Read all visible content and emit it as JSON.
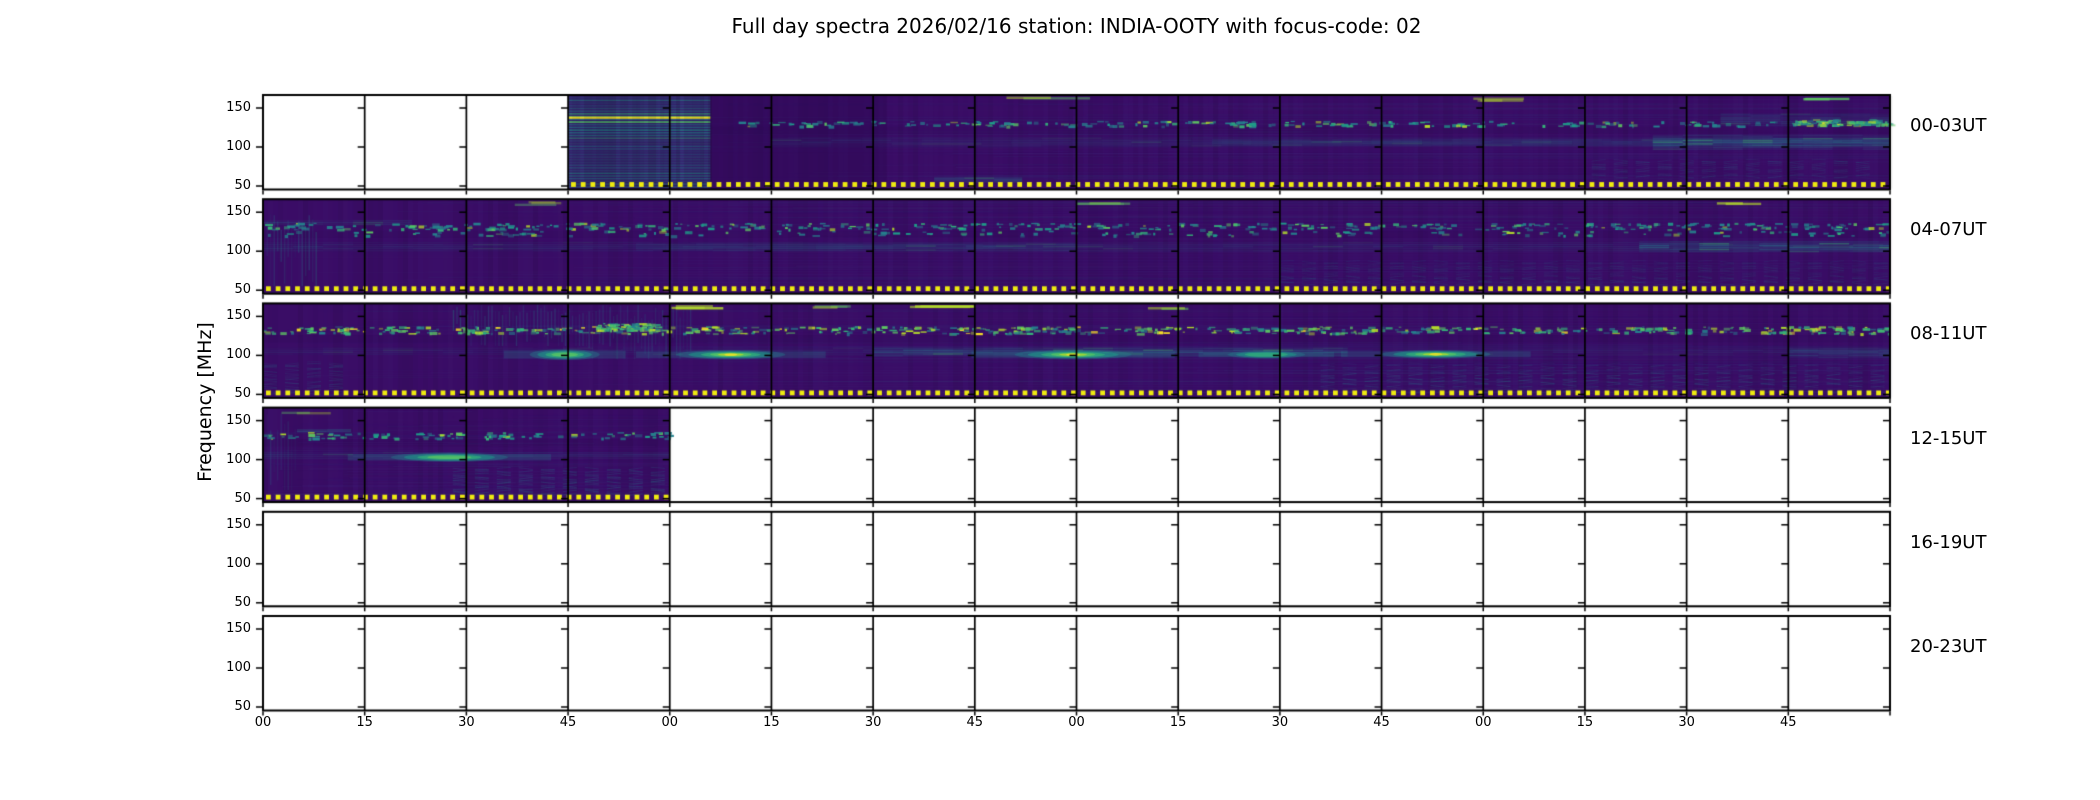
{
  "title": "Full day spectra 2026/02/16 station: INDIA-OOTY with focus-code: 02",
  "chart_data": {
    "type": "heatmap",
    "title": "Full day spectra 2026/02/16 station: INDIA-OOTY with focus-code: 02",
    "station": "INDIA-OOTY",
    "date": "2026/02/16",
    "focus_code": "02",
    "ylabel": "Frequency [MHz]",
    "y_ticks_mhz": [
      150,
      100,
      50
    ],
    "y_tick_labels": [
      "150",
      "100",
      "50"
    ],
    "freq_range_mhz": [
      45.5,
      166.5
    ],
    "x_tick_labels": [
      "00",
      "15",
      "30",
      "45",
      "00",
      "15",
      "30",
      "45",
      "00",
      "15",
      "30",
      "45",
      "00",
      "15",
      "30",
      "45"
    ],
    "panels_per_row": 16,
    "minutes_per_panel": 15,
    "marker": {
      "color": "#efeb10",
      "meaning": "yellow dotted line marking time bins with recorded data"
    },
    "palette": {
      "base": "#3a0d66",
      "deep": "#28074c",
      "dim": "#4a3f8e",
      "teal_dark": "#31688e",
      "teal": "#26828e",
      "teal_bright": "#1f9e89",
      "green": "#35b779",
      "green_bright": "#5ec962",
      "yellow_green": "#b5de2b",
      "yellow": "#fde725",
      "axis": "#000000",
      "background": "#ffffff"
    },
    "rows": [
      {
        "label": "00-03UT",
        "data_minutes": [
          [
            45,
            240
          ]
        ],
        "features": [
          {
            "type": "stripes",
            "t": [
              45,
              66
            ],
            "f": [
              46,
              167
            ],
            "alpha": 0.75
          },
          {
            "type": "dark",
            "t": [
              66,
              92
            ],
            "f": [
              46,
              167
            ],
            "alpha": 0.3
          },
          {
            "type": "speckle",
            "t": [
              68,
              240
            ],
            "f": [
              127,
              134
            ],
            "density": 0.45
          },
          {
            "type": "speckle",
            "t": [
              225,
              240
            ],
            "f": [
              128,
              136
            ],
            "density": 2,
            "bright": true
          },
          {
            "type": "band",
            "t": [
              75,
              240
            ],
            "f": [
              100,
              112
            ],
            "alpha": 0.18
          },
          {
            "type": "band",
            "t": [
              140,
              240
            ],
            "f": [
              101,
              110
            ],
            "alpha": 0.22
          },
          {
            "type": "band",
            "t": [
              205,
              240
            ],
            "f": [
              96,
              116
            ],
            "alpha": 0.42
          },
          {
            "type": "band",
            "t": [
              215,
              240
            ],
            "f": [
              126,
              143
            ],
            "alpha": 0.3
          },
          {
            "type": "band",
            "t": [
              99,
              112
            ],
            "f": [
              54,
              61
            ],
            "alpha": 0.45
          },
          {
            "type": "streak_top",
            "t": [
              108,
              122
            ],
            "f": [
              162,
              166
            ],
            "alpha": 0.85
          },
          {
            "type": "streak_top",
            "t": [
              176,
              186
            ],
            "f": [
              162,
              166
            ],
            "alpha": 0.6
          },
          {
            "type": "streak_top",
            "t": [
              225,
              234
            ],
            "f": [
              163,
              167
            ],
            "alpha": 0.9
          },
          {
            "type": "hlines",
            "t": [
              92,
              240
            ],
            "f": [
              46,
              96
            ],
            "alpha": 0.14
          },
          {
            "type": "wavy",
            "t": [
              196,
              240
            ],
            "f": [
              58,
              82
            ],
            "alpha": 0.2
          }
        ]
      },
      {
        "label": "04-07UT",
        "data_minutes": [
          [
            0,
            240
          ]
        ],
        "features": [
          {
            "type": "speckle",
            "t": [
              0,
              240
            ],
            "f": [
              128,
              137
            ],
            "density": 0.55
          },
          {
            "type": "speckle",
            "t": [
              0,
              240
            ],
            "f": [
              120,
              127
            ],
            "density": 0.2
          },
          {
            "type": "band",
            "t": [
              0,
              240
            ],
            "f": [
              99,
              112
            ],
            "alpha": 0.18
          },
          {
            "type": "band",
            "t": [
              55,
              120
            ],
            "f": [
              100,
              110
            ],
            "alpha": 0.26
          },
          {
            "type": "band",
            "t": [
              203,
              240
            ],
            "f": [
              98,
              113
            ],
            "alpha": 0.5
          },
          {
            "type": "band",
            "t": [
              0,
              22
            ],
            "f": [
              133,
              140
            ],
            "alpha": 0.25
          },
          {
            "type": "vlines",
            "t": [
              0,
              8
            ],
            "f": [
              55,
              150
            ],
            "alpha": 0.3
          },
          {
            "type": "hlines",
            "t": [
              0,
              240
            ],
            "f": [
              52,
              96
            ],
            "alpha": 0.13
          },
          {
            "type": "wavy",
            "t": [
              150,
              240
            ],
            "f": [
              58,
              86
            ],
            "alpha": 0.2
          },
          {
            "type": "streak_top",
            "t": [
              36,
              44
            ],
            "f": [
              163,
              166
            ],
            "alpha": 0.55
          },
          {
            "type": "streak_top",
            "t": [
              120,
              131
            ],
            "f": [
              163,
              166
            ],
            "alpha": 0.5
          },
          {
            "type": "streak_top",
            "t": [
              213,
              221
            ],
            "f": [
              163,
              166
            ],
            "alpha": 0.8
          }
        ]
      },
      {
        "label": "08-11UT",
        "data_minutes": [
          [
            0,
            240
          ]
        ],
        "features": [
          {
            "type": "speckle",
            "t": [
              0,
              240
            ],
            "f": [
              128,
              138
            ],
            "density": 0.85,
            "bright": true
          },
          {
            "type": "speckle",
            "t": [
              49,
              58
            ],
            "f": [
              132,
              142
            ],
            "density": 3,
            "bright": true
          },
          {
            "type": "vlines",
            "t": [
              28,
              48
            ],
            "f": [
              112,
              166
            ],
            "alpha": 0.3
          },
          {
            "type": "vlines",
            "t": [
              48,
              63
            ],
            "f": [
              95,
              166
            ],
            "alpha": 0.25
          },
          {
            "type": "blob",
            "t": [
              40,
              49
            ],
            "f": [
              94,
              108
            ],
            "intensity": 0.85
          },
          {
            "type": "blob",
            "t": [
              62,
              76
            ],
            "f": [
              95,
              107
            ],
            "intensity": 1.0
          },
          {
            "type": "band",
            "t": [
              90,
              160
            ],
            "f": [
              98,
              110
            ],
            "alpha": 0.45
          },
          {
            "type": "blob",
            "t": [
              112,
              127
            ],
            "f": [
              95,
              107
            ],
            "intensity": 1.0
          },
          {
            "type": "blob",
            "t": [
              143,
              153
            ],
            "f": [
              96,
              106
            ],
            "intensity": 0.75
          },
          {
            "type": "blob",
            "t": [
              166,
              180
            ],
            "f": [
              96,
              107
            ],
            "intensity": 1.0
          },
          {
            "type": "band",
            "t": [
              0,
              240
            ],
            "f": [
              100,
              110
            ],
            "alpha": 0.15
          },
          {
            "type": "band",
            "t": [
              225,
              240
            ],
            "f": [
              96,
              110
            ],
            "alpha": 0.35
          },
          {
            "type": "streak_top",
            "t": [
              60,
              69
            ],
            "f": [
              162,
              166
            ],
            "alpha": 0.95
          },
          {
            "type": "streak_top",
            "t": [
              80,
              88
            ],
            "f": [
              162,
              166
            ],
            "alpha": 0.6
          },
          {
            "type": "streak_top",
            "t": [
              95,
              106
            ],
            "f": [
              163,
              167
            ],
            "alpha": 0.85
          },
          {
            "type": "streak_top",
            "t": [
              130,
              140
            ],
            "f": [
              163,
              166
            ],
            "alpha": 0.6
          },
          {
            "type": "wavy",
            "t": [
              156,
              240
            ],
            "f": [
              50,
              88
            ],
            "alpha": 0.26
          },
          {
            "type": "wavy",
            "t": [
              0,
              14
            ],
            "f": [
              50,
              90
            ],
            "alpha": 0.25
          },
          {
            "type": "hlines",
            "t": [
              0,
              240
            ],
            "f": [
              50,
              96
            ],
            "alpha": 0.12
          }
        ]
      },
      {
        "label": "12-15UT",
        "data_minutes": [
          [
            0,
            60
          ]
        ],
        "features": [
          {
            "type": "speckle",
            "t": [
              0,
              60
            ],
            "f": [
              127,
              136
            ],
            "density": 0.6
          },
          {
            "type": "band",
            "t": [
              5,
              13
            ],
            "f": [
              135,
              139
            ],
            "alpha": 0.6
          },
          {
            "type": "blob",
            "t": [
              20,
              35
            ],
            "f": [
              97,
              109
            ],
            "intensity": 0.9
          },
          {
            "type": "band",
            "t": [
              0,
              60
            ],
            "f": [
              100,
              110
            ],
            "alpha": 0.2
          },
          {
            "type": "wavy",
            "t": [
              28,
              60
            ],
            "f": [
              52,
              88
            ],
            "alpha": 0.3
          },
          {
            "type": "hlines",
            "t": [
              0,
              60
            ],
            "f": [
              55,
              96
            ],
            "alpha": 0.13
          },
          {
            "type": "vlines",
            "t": [
              0,
              5
            ],
            "f": [
              60,
              160
            ],
            "alpha": 0.25
          },
          {
            "type": "streak_top",
            "t": [
              2,
              10
            ],
            "f": [
              162,
              166
            ],
            "alpha": 0.5
          }
        ]
      },
      {
        "label": "16-19UT",
        "data_minutes": [],
        "features": []
      },
      {
        "label": "20-23UT",
        "data_minutes": [],
        "features": []
      }
    ]
  }
}
